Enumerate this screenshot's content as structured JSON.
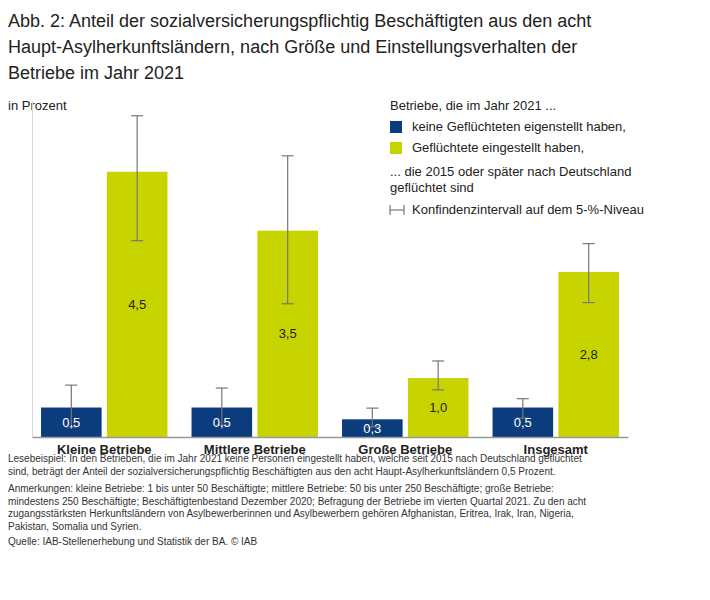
{
  "chart_data": {
    "type": "bar",
    "title": [
      "Abb. 2: Anteil der sozialversicherungspflichtig Beschäftigten aus den acht",
      "Haupt-Asylherkunftsländern, nach Größe und Einstellungsverhalten der",
      "Betriebe im Jahr 2021"
    ],
    "y_label": "in Prozent",
    "legend_title": "Betriebe, die im Jahr 2021 ...",
    "legend_suffix": [
      "... die 2015 oder später nach Deutschland",
      "geflüchtet sind"
    ],
    "ci_label": "Konfindenzintervall auf dem 5-%-Niveau",
    "categories": [
      "Kleine Betriebe",
      "Mittlere Betriebe",
      "Große Betriebe",
      "Insgesamt"
    ],
    "series": [
      {
        "name": "keine Geflüchteten eigenstellt haben,",
        "color": "#0b3c7d",
        "values": [
          0.5,
          0.5,
          0.3,
          0.5
        ],
        "value_labels": [
          "0,5",
          "0,5",
          "0,3",
          "0,5"
        ],
        "ci_low": [
          0.17,
          0.2,
          0.17,
          0.32
        ],
        "ci_high": [
          0.88,
          0.83,
          0.49,
          0.65
        ]
      },
      {
        "name": "Geflüchtete eingestellt haben,",
        "color": "#c8d400",
        "values": [
          4.5,
          3.5,
          1.0,
          2.8
        ],
        "value_labels": [
          "4,5",
          "3,5",
          "1,0",
          "2,8"
        ],
        "ci_low": [
          3.33,
          2.26,
          0.8,
          2.28
        ],
        "ci_high": [
          5.45,
          4.77,
          1.29,
          3.28
        ]
      }
    ],
    "ylim": [
      0,
      5.7
    ],
    "tick_labels": "x",
    "data_labels": true,
    "grid": false,
    "legend": "top-right",
    "notes": [
      "Lesebeispiel: In den Betrieben, die im Jahr 2021 keine Personen eingestellt haben, welche seit 2015 nach Deutschland geflüchtet",
      "sind, beträgt der Anteil der sozialversicherungspflichtig Beschäftigten aus den acht Haupt-Asylherkunftsländern 0,5 Prozent.",
      "Anmerkungen: kleine Betriebe: 1 bis unter 50 Beschäftigte; mittlere Betriebe: 50 bis unter 250 Beschäftigte; große Betriebe:",
      "mindestens 250 Beschäftigte; Beschäftigtenbestand Dezember 2020; Befragung der Betriebe im vierten Quartal 2021. Zu den acht",
      "zugangsstärksten Herkunftsländern von Asylbewerberinnen und Asylbewerbern gehören Afghanistan, Eritrea, Irak, Iran, Nigeria,",
      "Pakistan, Somalia und Syrien."
    ],
    "source": "Quelle: IAB-Stellenerhebung und Statistik der BA. © IAB"
  }
}
